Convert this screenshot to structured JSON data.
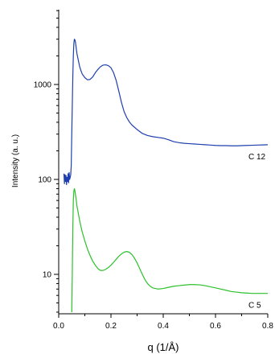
{
  "chart_data": {
    "type": "line",
    "title": "",
    "xlabel": "q (1/Å)",
    "ylabel": "Intensity (a. u.)",
    "xlim": [
      0.0,
      0.8
    ],
    "ylim": [
      4,
      12000
    ],
    "yscale": "log",
    "grid": false,
    "legend": "none",
    "x_ticks": [
      "0.0",
      "0.2",
      "0.4",
      "0.6",
      "0.8"
    ],
    "y_ticks": [
      "10",
      "100",
      "1000"
    ],
    "series": [
      {
        "name": "C 12",
        "color": "#1f3fae",
        "x": [
          0.02,
          0.022,
          0.024,
          0.026,
          0.028,
          0.03,
          0.032,
          0.034,
          0.036,
          0.038,
          0.04,
          0.042,
          0.044,
          0.046,
          0.048,
          0.05,
          0.052,
          0.054,
          0.056,
          0.058,
          0.06,
          0.062,
          0.064,
          0.066,
          0.068,
          0.07,
          0.075,
          0.08,
          0.085,
          0.09,
          0.1,
          0.11,
          0.12,
          0.13,
          0.14,
          0.15,
          0.16,
          0.17,
          0.18,
          0.19,
          0.2,
          0.21,
          0.22,
          0.23,
          0.24,
          0.25,
          0.26,
          0.27,
          0.28,
          0.3,
          0.32,
          0.34,
          0.36,
          0.38,
          0.4,
          0.42,
          0.44,
          0.46,
          0.48,
          0.5,
          0.52,
          0.54,
          0.56,
          0.58,
          0.6,
          0.62,
          0.64,
          0.66,
          0.68,
          0.7,
          0.72,
          0.74,
          0.76,
          0.78,
          0.8
        ],
        "y": [
          115,
          90,
          112,
          95,
          110,
          88,
          105,
          95,
          115,
          92,
          118,
          100,
          105,
          112,
          140,
          300,
          600,
          1200,
          2000,
          2700,
          3000,
          2950,
          2800,
          2550,
          2300,
          2100,
          1800,
          1550,
          1400,
          1290,
          1180,
          1120,
          1130,
          1200,
          1330,
          1440,
          1540,
          1600,
          1610,
          1580,
          1500,
          1330,
          1100,
          850,
          650,
          520,
          450,
          405,
          375,
          335,
          305,
          290,
          282,
          277,
          272,
          262,
          250,
          244,
          240,
          238,
          236,
          234,
          232,
          230,
          228,
          227,
          227,
          226,
          226,
          227,
          228,
          229,
          230,
          231,
          232
        ]
      },
      {
        "name": "C 5",
        "color": "#2cc12c",
        "x": [
          0.05,
          0.052,
          0.054,
          0.056,
          0.058,
          0.06,
          0.062,
          0.064,
          0.066,
          0.068,
          0.07,
          0.075,
          0.08,
          0.085,
          0.09,
          0.1,
          0.11,
          0.12,
          0.13,
          0.14,
          0.15,
          0.16,
          0.17,
          0.18,
          0.19,
          0.2,
          0.21,
          0.22,
          0.23,
          0.24,
          0.25,
          0.26,
          0.27,
          0.28,
          0.29,
          0.3,
          0.31,
          0.32,
          0.33,
          0.34,
          0.35,
          0.36,
          0.38,
          0.4,
          0.42,
          0.44,
          0.46,
          0.48,
          0.5,
          0.52,
          0.54,
          0.56,
          0.58,
          0.6,
          0.62,
          0.64,
          0.66,
          0.68,
          0.7,
          0.72,
          0.74,
          0.76,
          0.78,
          0.8
        ],
        "y": [
          4,
          10,
          30,
          60,
          75,
          80,
          76,
          70,
          64,
          58,
          52,
          44,
          37,
          32,
          28,
          22.5,
          18.5,
          15.8,
          13.8,
          12.5,
          11.5,
          11.0,
          11.0,
          11.3,
          11.8,
          12.5,
          13.4,
          14.4,
          15.5,
          16.4,
          17.1,
          17.4,
          17.1,
          16.2,
          14.8,
          13.2,
          11.5,
          10.0,
          8.8,
          8.0,
          7.5,
          7.2,
          7.0,
          7.1,
          7.3,
          7.5,
          7.6,
          7.7,
          7.8,
          7.8,
          7.75,
          7.6,
          7.4,
          7.2,
          7.0,
          6.8,
          6.6,
          6.5,
          6.4,
          6.35,
          6.3,
          6.3,
          6.3,
          6.3
        ]
      }
    ]
  }
}
